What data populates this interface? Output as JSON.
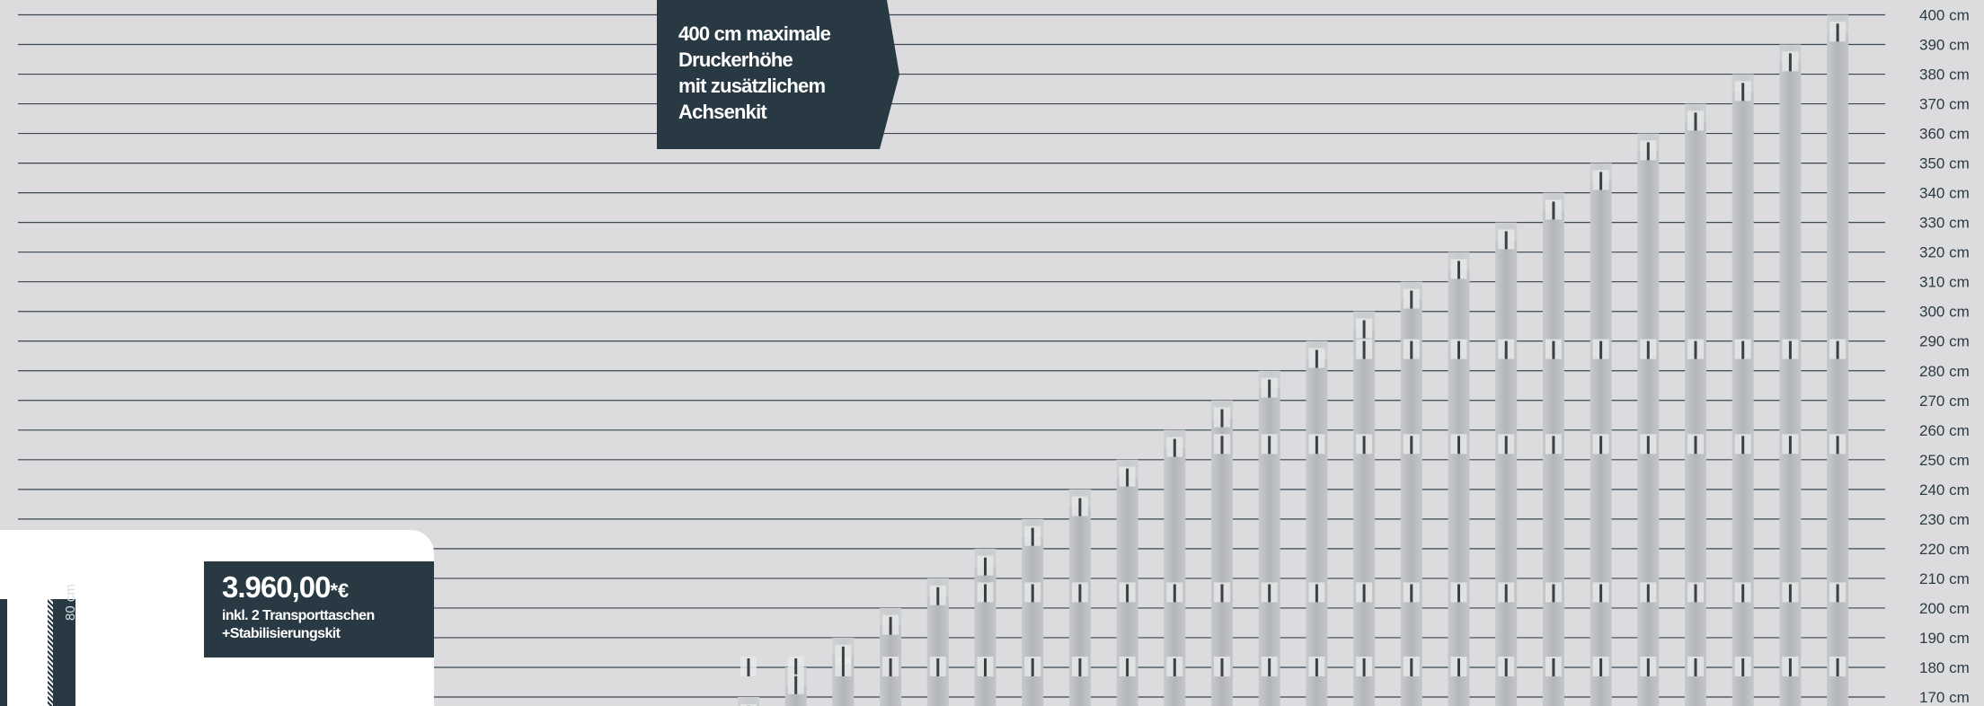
{
  "chart_data": {
    "type": "bar",
    "title": "",
    "xlabel": "",
    "ylabel": "",
    "y_unit": "cm",
    "ylim": [
      170,
      400
    ],
    "y_ticks": [
      "400 cm",
      "390 cm",
      "380 cm",
      "370 cm",
      "360 cm",
      "350 cm",
      "340 cm",
      "330 cm",
      "320 cm",
      "310 cm",
      "300 cm",
      "290 cm",
      "280 cm",
      "270 cm",
      "260 cm",
      "250 cm",
      "240 cm",
      "230 cm",
      "220 cm",
      "210 cm",
      "200 cm",
      "190 cm",
      "180 cm",
      "170 cm"
    ],
    "grid": true,
    "bar_color": "#b9bcbf",
    "values": [
      170,
      180,
      190,
      200,
      210,
      220,
      230,
      240,
      250,
      260,
      270,
      280,
      290,
      300,
      310,
      320,
      330,
      340,
      350,
      360,
      370,
      380,
      390,
      400
    ],
    "legend": "none"
  },
  "callout": {
    "lines": [
      "400 cm maximale",
      "Druckerhöhe",
      "mit zusätzlichem",
      "Achsenkit"
    ]
  },
  "price": {
    "amount": "3.960,00",
    "suffix": "*€",
    "line1": "inkl. 2 Transporttaschen",
    "line2": "+Stabilisierungskit"
  },
  "dimension_label": "80 cm",
  "colors": {
    "background": "#dcdcde",
    "dark": "#293943",
    "grid": "#3a4650"
  }
}
